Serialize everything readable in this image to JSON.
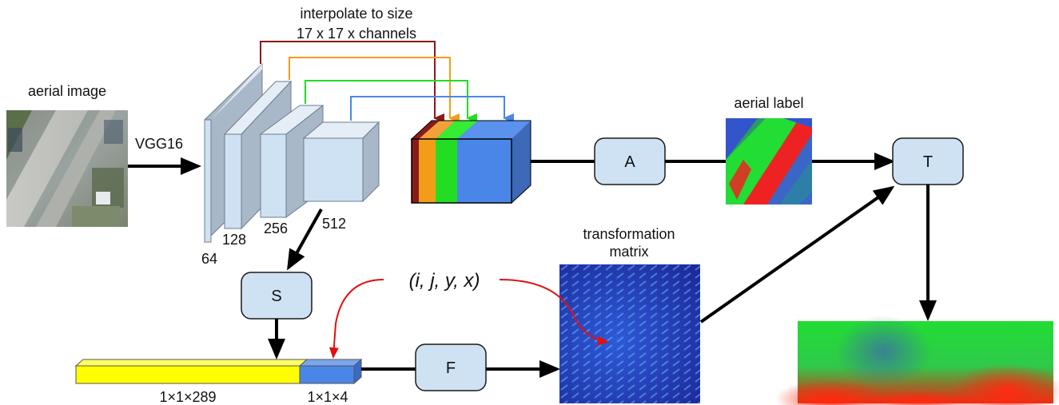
{
  "title_line1": "interpolate to size",
  "title_line2": "17 x 17 x channels",
  "aerial_image_label": "aerial image",
  "vgg_label": "VGG16",
  "layer_sizes": [
    "64",
    "128",
    "256",
    "512"
  ],
  "aerial_label": "aerial label",
  "transformation_matrix_line1": "transformation",
  "transformation_matrix_line2": "matrix",
  "vars_label": "(i, j, y, x)",
  "vector_left_label": "1×1×289",
  "vector_right_label": "1×1×4",
  "boxes": {
    "A": "A",
    "S": "S",
    "F": "F",
    "T": "T"
  },
  "colors": {
    "dark_red": "#8b1a1a",
    "orange": "#f39c1a",
    "green": "#22dd22",
    "blue": "#4a86e8",
    "yellow": "#ffff00",
    "box_fill": "#cfe2f3",
    "layer_fill": "#cfe2f3"
  }
}
